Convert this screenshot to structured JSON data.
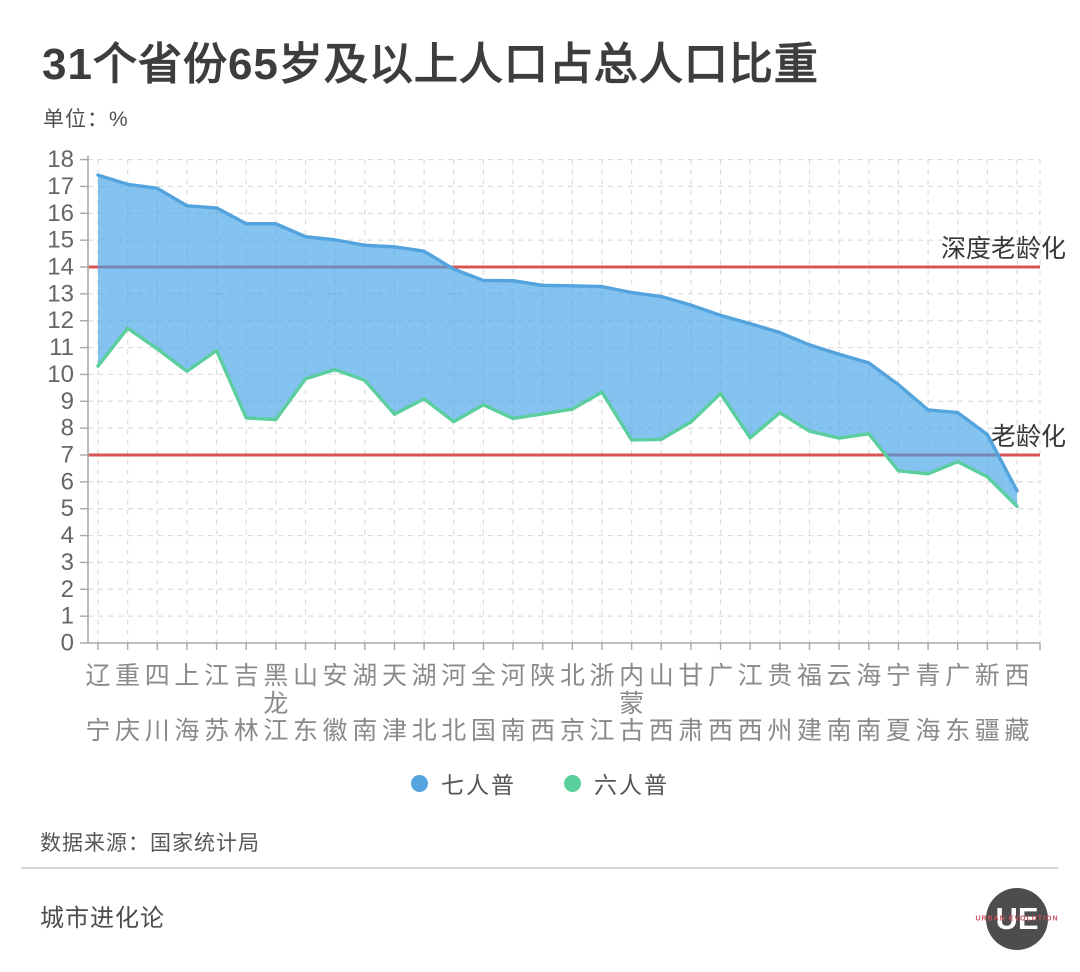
{
  "header": {
    "title": "31个省份65岁及以上人口占总人口比重",
    "unit": "单位：%"
  },
  "chart_data": {
    "type": "area",
    "title": "31个省份65岁及以上人口占总人口比重",
    "unit_label": "单位：%",
    "categories": [
      "辽宁",
      "重庆",
      "四川",
      "上海",
      "江苏",
      "吉林",
      "黑龙江",
      "山东",
      "安徽",
      "湖南",
      "天津",
      "湖北",
      "河北",
      "全国",
      "河南",
      "陕西",
      "北京",
      "浙江",
      "内蒙古",
      "山西",
      "甘肃",
      "广西",
      "江西",
      "贵州",
      "福建",
      "云南",
      "海南",
      "宁夏",
      "青海",
      "广东",
      "新疆",
      "西藏"
    ],
    "series": [
      {
        "name": "七人普",
        "color": "#53A3DE",
        "values": [
          17.42,
          17.08,
          16.93,
          16.28,
          16.2,
          15.61,
          15.61,
          15.13,
          15.01,
          14.81,
          14.75,
          14.59,
          13.92,
          13.5,
          13.49,
          13.32,
          13.3,
          13.27,
          13.05,
          12.9,
          12.58,
          12.2,
          11.89,
          11.56,
          11.1,
          10.75,
          10.43,
          9.62,
          8.68,
          8.58,
          7.76,
          5.67
        ]
      },
      {
        "name": "六人普",
        "color": "#5BCE9E",
        "values": [
          10.31,
          11.72,
          10.95,
          10.12,
          10.89,
          8.38,
          8.32,
          9.84,
          10.18,
          9.78,
          8.52,
          9.09,
          8.24,
          8.87,
          8.36,
          8.53,
          8.71,
          9.34,
          7.56,
          7.58,
          8.23,
          9.29,
          7.64,
          8.57,
          7.89,
          7.63,
          7.79,
          6.41,
          6.3,
          6.75,
          6.19,
          5.09
        ]
      }
    ],
    "ylim": [
      0,
      18
    ],
    "ytick_step": 1,
    "grid": true,
    "legend_position": "bottom",
    "ref_lines": [
      {
        "value": 14,
        "label": "深度老龄化"
      },
      {
        "value": 7,
        "label": "老龄化"
      }
    ],
    "colors": {
      "area_fill": "#42A1E8",
      "area_fill_opacity": 0.65,
      "ref_line": "#D95555",
      "grid": "#dcdcdc",
      "axis": "#a8a8a8",
      "y_label": "#666666",
      "x_label": "#8a8a8a",
      "annotation": "#383838"
    }
  },
  "footer": {
    "source": "数据来源：国家统计局",
    "brand": "城市进化论",
    "logo_text": "UE",
    "logo_subtext": "URBAN EVOLUTION"
  }
}
